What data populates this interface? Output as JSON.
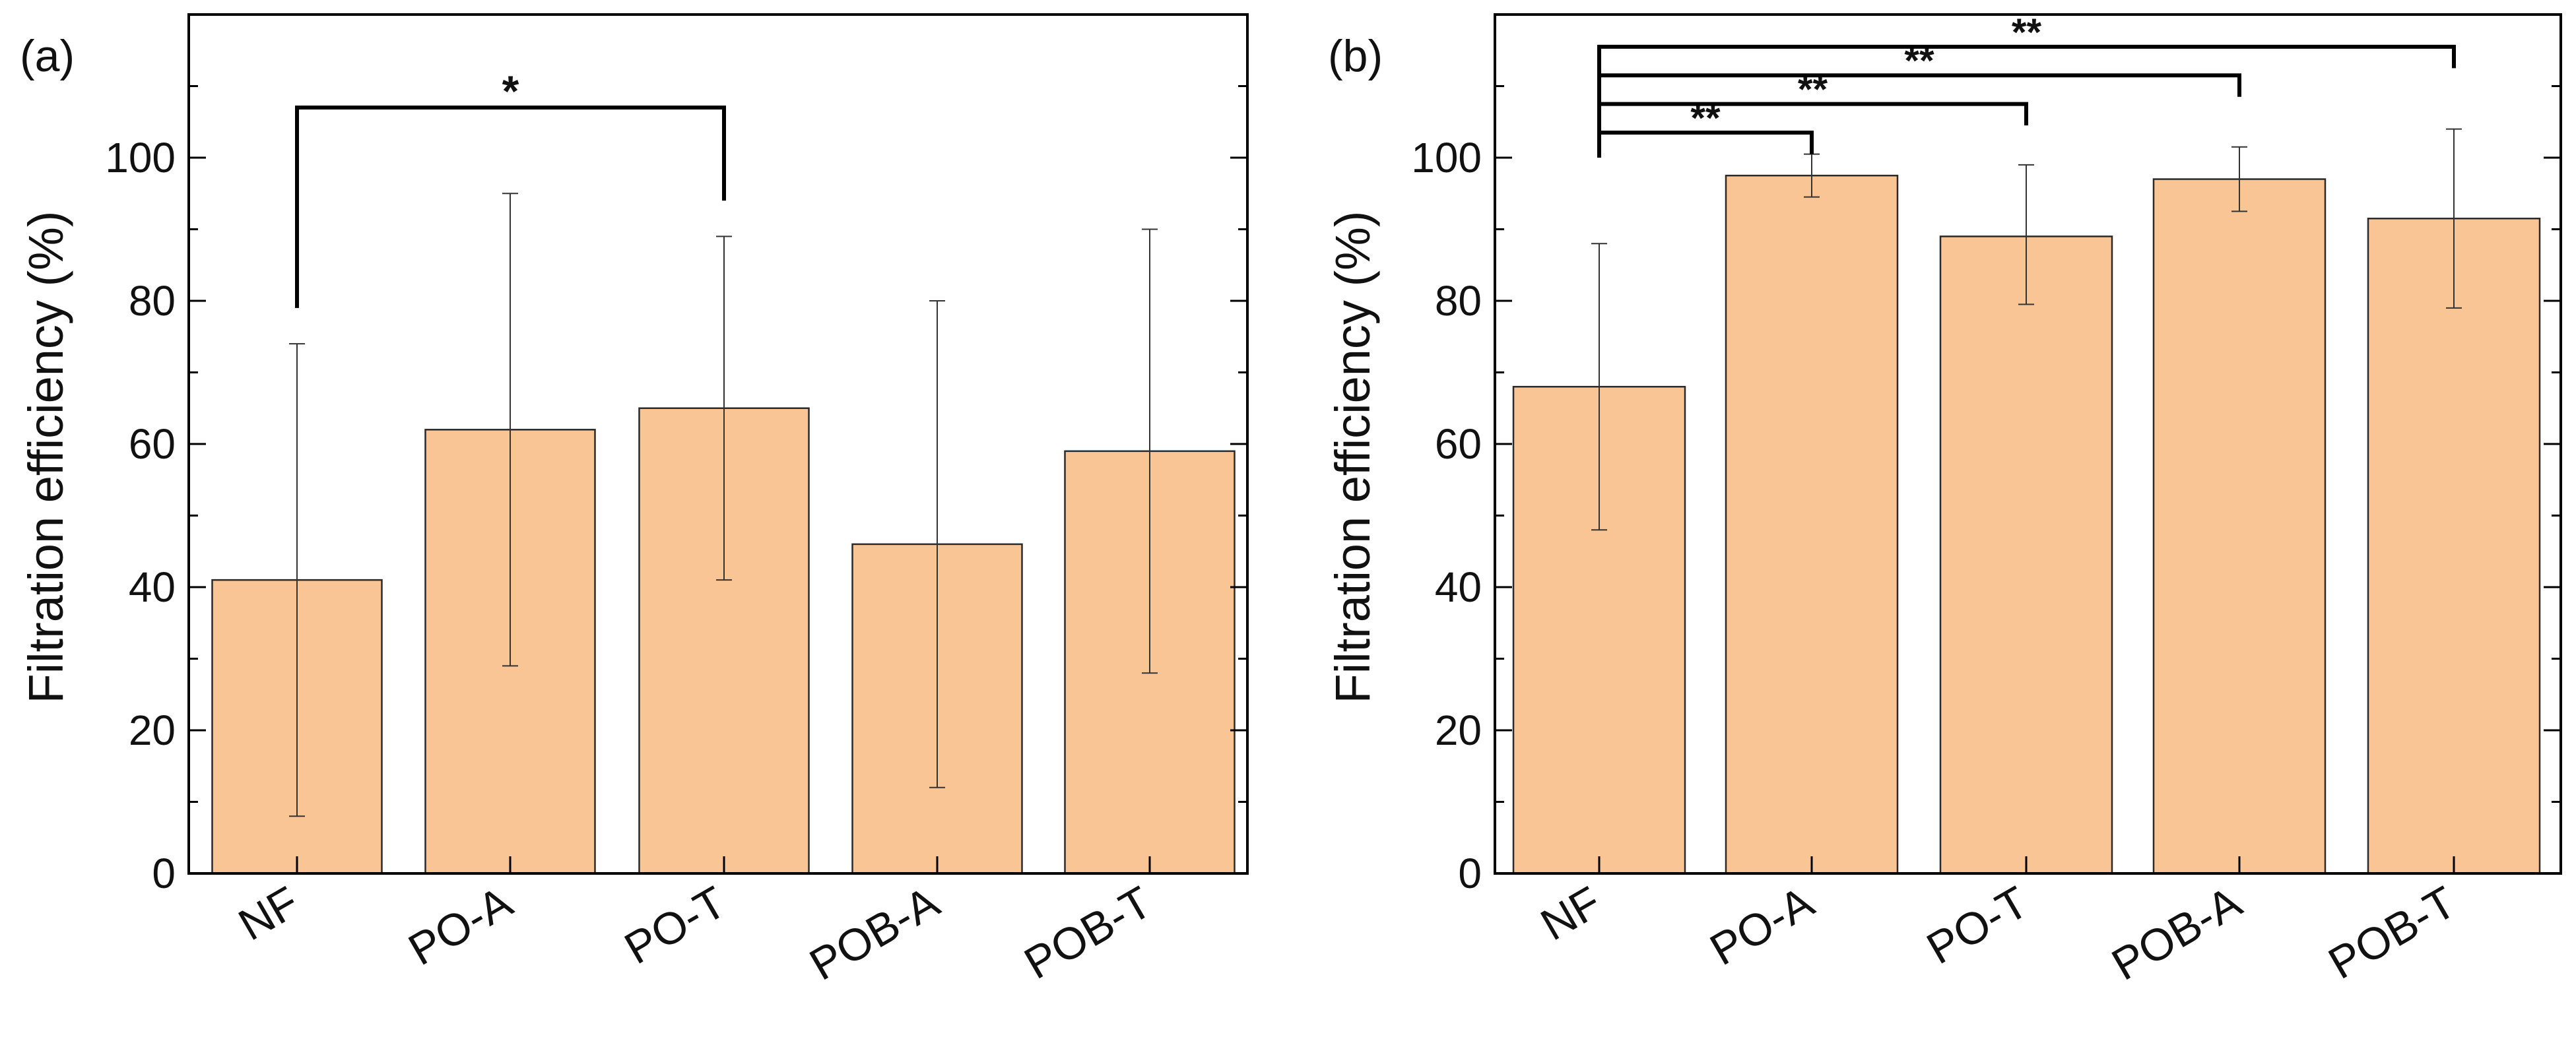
{
  "chart_data": [
    {
      "type": "bar",
      "panel_label": "(a)",
      "categories": [
        "NF",
        "PO-A",
        "PO-T",
        "POB-A",
        "POB-T"
      ],
      "values": [
        41,
        62,
        65,
        46,
        59
      ],
      "error_low": [
        8,
        29,
        41,
        12,
        28
      ],
      "error_high": [
        74,
        95,
        89,
        80,
        90
      ],
      "ylabel": "Filtration efficiency (%)",
      "xlabel": "",
      "ylim": [
        0,
        120
      ],
      "yticks": [
        0,
        20,
        40,
        60,
        80,
        100
      ],
      "bar_color": "#f9c595",
      "significance": [
        {
          "from": "NF",
          "to": "PO-T",
          "label": "*",
          "level_y": 107,
          "from_y": 79,
          "to_y": 94
        }
      ]
    },
    {
      "type": "bar",
      "panel_label": "(b)",
      "categories": [
        "NF",
        "PO-A",
        "PO-T",
        "POB-A",
        "POB-T"
      ],
      "values": [
        68,
        97.5,
        89,
        97,
        91.5
      ],
      "error_low": [
        48,
        94.5,
        79.5,
        92.5,
        79
      ],
      "error_high": [
        88,
        100.5,
        99,
        101.5,
        104
      ],
      "ylabel": "Filtration efficiency (%)",
      "xlabel": "",
      "ylim": [
        0,
        120
      ],
      "yticks": [
        0,
        20,
        40,
        60,
        80,
        100
      ],
      "bar_color": "#f9c595",
      "significance": [
        {
          "from": "NF",
          "to": "PO-A",
          "label": "**",
          "level_y": 103.5,
          "from_y": 100,
          "to_y": 100.5
        },
        {
          "from": "NF",
          "to": "PO-T",
          "label": "**",
          "level_y": 107.5,
          "from_y": 100,
          "to_y": 104.5
        },
        {
          "from": "NF",
          "to": "POB-A",
          "label": "**",
          "level_y": 111.5,
          "from_y": 100,
          "to_y": 108.5
        },
        {
          "from": "NF",
          "to": "POB-T",
          "label": "**",
          "level_y": 115.5,
          "from_y": 100,
          "to_y": 112.5
        }
      ]
    }
  ]
}
